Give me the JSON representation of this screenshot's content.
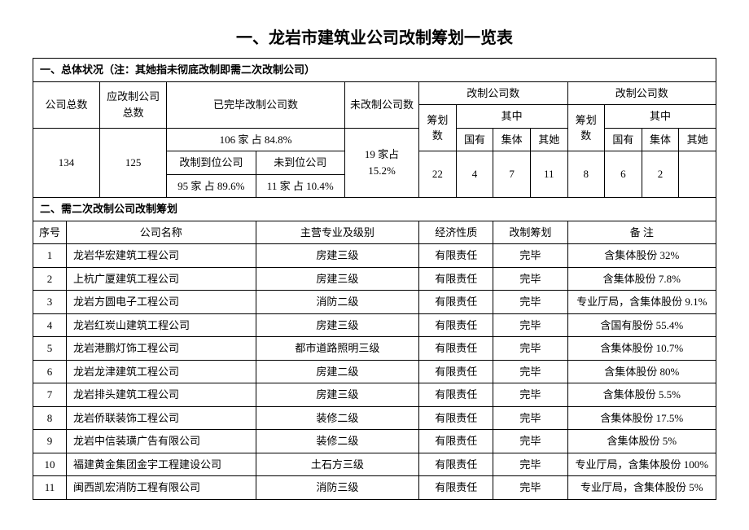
{
  "title": "一、龙岩市建筑业公司改制筹划一览表",
  "section1": {
    "header": "一、总体状况（注：其她指未彻底改制即需二次改制公司）",
    "cols": {
      "total_companies": "公司总数",
      "should_reform": "应改制公司总数",
      "completed_reform": "已完毕改制公司数",
      "not_reformed": "未改制公司数",
      "reform_count_a": "改制公司数",
      "reform_count_b": "改制公司数",
      "plan_count": "筹划数",
      "of_which": "其中",
      "state": "国有",
      "collective": "集体",
      "other": "其她",
      "completed_sub1": "106 家  占 84.8%",
      "completed_sub2a": "改制到位公司",
      "completed_sub2b": "未到位公司",
      "row_total": "134",
      "row_should": "125",
      "row_notreformed": "19 家占 15.2%",
      "row_sub_a": "95 家 占 89.6%",
      "row_sub_b": "11 家 占 10.4%",
      "a_plan": "22",
      "a_state": "4",
      "a_collective": "7",
      "a_other": "11",
      "b_plan": "8",
      "b_state": "6",
      "b_collective": "2",
      "b_other": ""
    }
  },
  "section2": {
    "header": "二、需二次改制公司改制筹划",
    "cols": {
      "seq": "序号",
      "name": "公司名称",
      "major": "主营专业及级别",
      "nature": "经济性质",
      "plan": "改制筹划",
      "remark": "备  注"
    },
    "rows": [
      {
        "seq": "1",
        "name": "龙岩华宏建筑工程公司",
        "major": "房建三级",
        "nature": "有限责任",
        "plan": "完毕",
        "remark": "含集体股份 32%"
      },
      {
        "seq": "2",
        "name": "上杭广厦建筑工程公司",
        "major": "房建三级",
        "nature": "有限责任",
        "plan": "完毕",
        "remark": "含集体股份 7.8%"
      },
      {
        "seq": "3",
        "name": "龙岩方圆电子工程公司",
        "major": "消防二级",
        "nature": "有限责任",
        "plan": "完毕",
        "remark": "专业厅局，含集体股份 9.1%"
      },
      {
        "seq": "4",
        "name": "龙岩红炭山建筑工程公司",
        "major": "房建三级",
        "nature": "有限责任",
        "plan": "完毕",
        "remark": "含国有股份 55.4%"
      },
      {
        "seq": "5",
        "name": "龙岩港鹏灯饰工程公司",
        "major": "都市道路照明三级",
        "nature": "有限责任",
        "plan": "完毕",
        "remark": "含集体股份 10.7%"
      },
      {
        "seq": "6",
        "name": "龙岩龙津建筑工程公司",
        "major": "房建二级",
        "nature": "有限责任",
        "plan": "完毕",
        "remark": "含集体股份 80%"
      },
      {
        "seq": "7",
        "name": "龙岩排头建筑工程公司",
        "major": "房建三级",
        "nature": "有限责任",
        "plan": "完毕",
        "remark": "含集体股份 5.5%"
      },
      {
        "seq": "8",
        "name": "龙岩侨联装饰工程公司",
        "major": "装修二级",
        "nature": "有限责任",
        "plan": "完毕",
        "remark": "含集体股份 17.5%"
      },
      {
        "seq": "9",
        "name": "龙岩中信装璜广告有限公司",
        "major": "装修二级",
        "nature": "有限责任",
        "plan": "完毕",
        "remark": "含集体股份 5%"
      },
      {
        "seq": "10",
        "name": "福建黄金集团金宇工程建设公司",
        "major": "土石方三级",
        "nature": "有限责任",
        "plan": "完毕",
        "remark": "专业厅局，含集体股份 100%"
      },
      {
        "seq": "11",
        "name": "闽西凯宏消防工程有限公司",
        "major": "消防三级",
        "nature": "有限责任",
        "plan": "完毕",
        "remark": "专业厅局，含集体股份 5%"
      }
    ]
  }
}
